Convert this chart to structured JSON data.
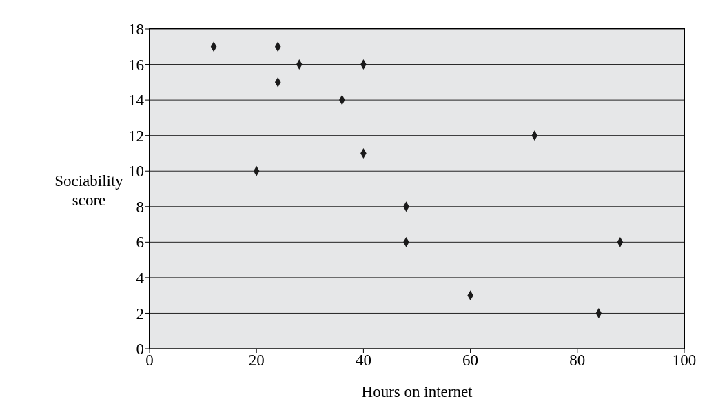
{
  "chart_data": {
    "type": "scatter",
    "xlabel": "Hours on internet",
    "ylabel": "Sociability score",
    "x": [
      12,
      24,
      28,
      40,
      24,
      36,
      40,
      20,
      48,
      48,
      60,
      72,
      88,
      84
    ],
    "values": [
      17,
      17,
      16,
      16,
      15,
      14,
      11,
      10,
      8,
      6,
      3,
      12,
      6,
      2
    ],
    "color": "#1a1a1a",
    "marker": "diamond",
    "grid": "y",
    "xlim": [
      0,
      100
    ],
    "xticks": [
      0,
      20,
      40,
      60,
      80,
      100
    ],
    "ylim": [
      0,
      18
    ],
    "yticks": [
      0,
      2,
      4,
      6,
      8,
      10,
      12,
      14,
      16,
      18
    ]
  }
}
